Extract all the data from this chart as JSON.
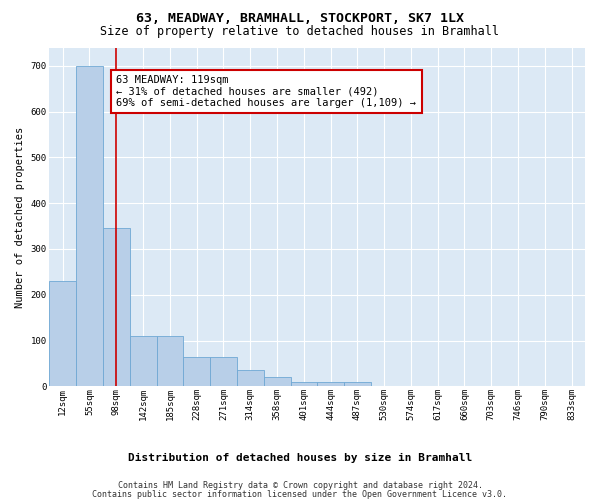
{
  "title_line1": "63, MEADWAY, BRAMHALL, STOCKPORT, SK7 1LX",
  "title_line2": "Size of property relative to detached houses in Bramhall",
  "xlabel": "Distribution of detached houses by size in Bramhall",
  "ylabel": "Number of detached properties",
  "footer_line1": "Contains HM Land Registry data © Crown copyright and database right 2024.",
  "footer_line2": "Contains public sector information licensed under the Open Government Licence v3.0.",
  "annotation_line1": "63 MEADWAY: 119sqm",
  "annotation_line2": "← 31% of detached houses are smaller (492)",
  "annotation_line3": "69% of semi-detached houses are larger (1,109) →",
  "property_sqm": 119,
  "bar_color": "#b8cfe8",
  "bar_edge_color": "#6fa8d4",
  "red_line_color": "#cc0000",
  "annotation_box_edge": "#cc0000",
  "annotation_box_face": "#ffffff",
  "bin_edges": [
    12,
    55,
    98,
    142,
    185,
    228,
    271,
    314,
    358,
    401,
    444,
    487,
    530,
    574,
    617,
    660,
    703,
    746,
    790,
    833,
    876
  ],
  "bar_heights": [
    230,
    700,
    345,
    110,
    110,
    65,
    65,
    35,
    20,
    10,
    10,
    10,
    0,
    0,
    0,
    0,
    0,
    0,
    0,
    0
  ],
  "ylim": [
    0,
    740
  ],
  "yticks": [
    0,
    100,
    200,
    300,
    400,
    500,
    600,
    700
  ],
  "plot_bg_color": "#dce9f5",
  "grid_color": "#ffffff",
  "title1_fontsize": 9.5,
  "title2_fontsize": 8.5,
  "tick_fontsize": 6.5,
  "ylabel_fontsize": 7.5,
  "xlabel_fontsize": 8.0,
  "annotation_fontsize": 7.5,
  "footer_fontsize": 6.0
}
